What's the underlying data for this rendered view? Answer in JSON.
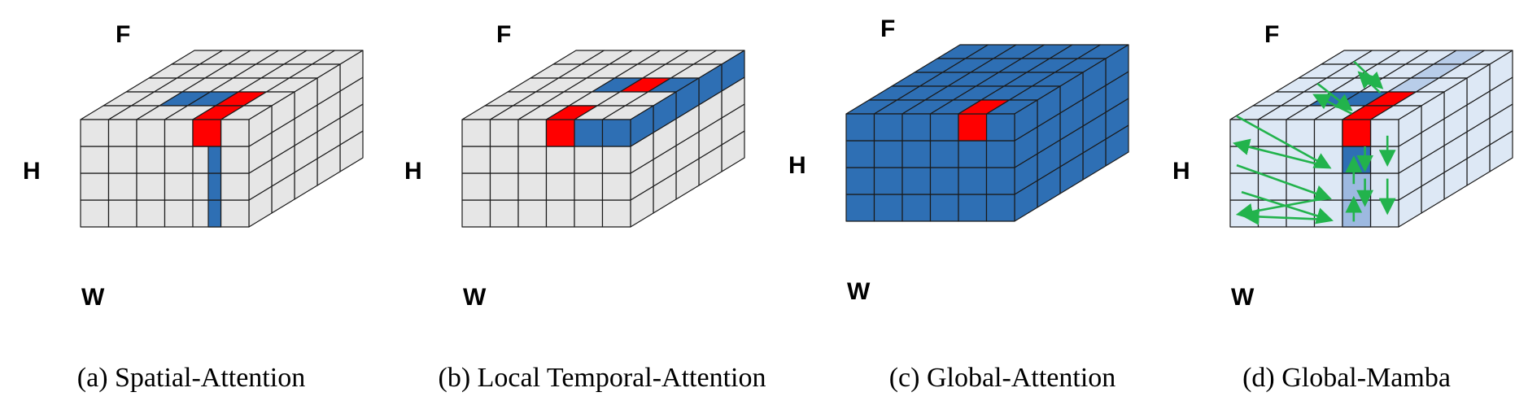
{
  "axes": {
    "frames": "F",
    "height": "H",
    "width": "W"
  },
  "colors": {
    "cell_default": "#e6e6e6",
    "cell_blue": "#2e6fb4",
    "cell_red": "#ff0000",
    "cell_light": "#dde8f5",
    "cell_lightmid": "#b8cde9",
    "cell_mid": "#9db9e0",
    "edge": "#1a1a1a",
    "arrow": "#22b34c"
  },
  "panels": [
    {
      "id": "a",
      "caption": "(a) Spatial-Attention",
      "mode": "spatial"
    },
    {
      "id": "b",
      "caption": "(b) Local Temporal-Attention",
      "mode": "temporal"
    },
    {
      "id": "c",
      "caption": "(c) Global-Attention",
      "mode": "global"
    },
    {
      "id": "d",
      "caption": "(d) Global-Mamba",
      "mode": "mamba"
    }
  ]
}
